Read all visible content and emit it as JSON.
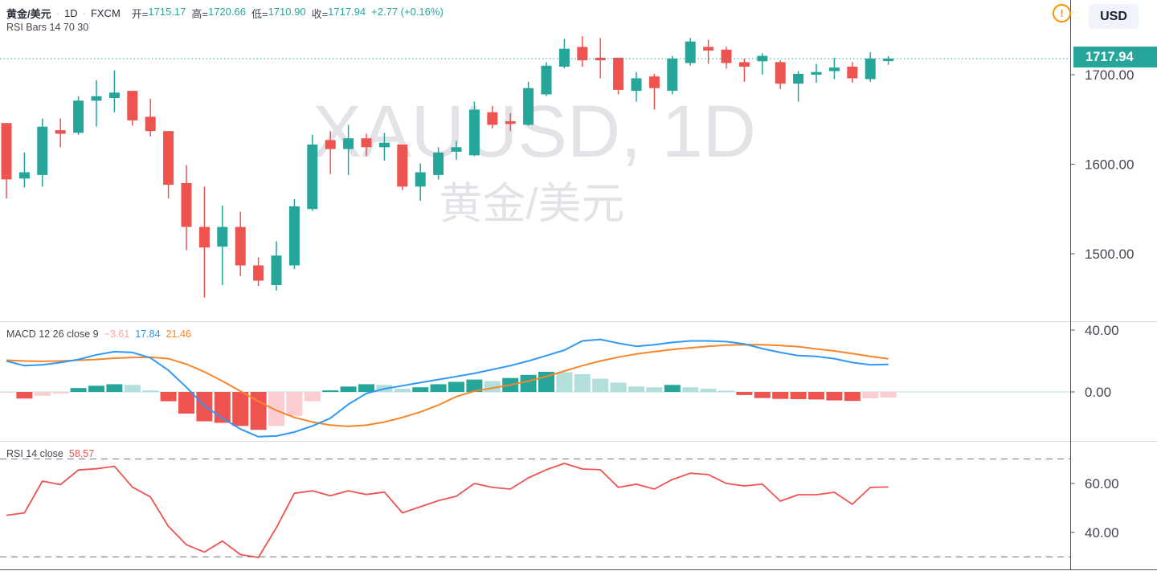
{
  "header": {
    "symbol": "黄金/美元",
    "separator": "·",
    "interval": "1D",
    "exchange": "FXCM",
    "open_label": "开=",
    "open": "1715.17",
    "high_label": "高=",
    "high": "1720.66",
    "low_label": "低=",
    "low": "1710.90",
    "close_label": "收=",
    "close": "1717.94",
    "change": "+2.77 (+0.16%)"
  },
  "indicator_row": "RSI Bars 14 70 30",
  "macd_row": {
    "title": "MACD 12 26 close 9",
    "histogram_value": "−3.61",
    "macd_value": "17.84",
    "signal_value": "21.46"
  },
  "rsi_row": {
    "title": "RSI 14 close",
    "value": "58.57"
  },
  "axis": {
    "currency": "USD",
    "last_price": "1717.94"
  },
  "watermark": {
    "line1": "XAUUSD, 1D",
    "line2": "黄金/美元"
  },
  "warning_icon_glyph": "!",
  "colors": {
    "up": "#26a69a",
    "down": "#ef5350",
    "hist_up_grow": "#26a69a",
    "hist_up_fall": "#b2dfdb",
    "hist_dn_grow": "#fbccd0",
    "hist_dn_fall": "#ef5350",
    "macd_line": "#2f99f5",
    "signal_line": "#f7852c",
    "rsi_line": "#ef5350",
    "band_dash": "#787b86",
    "price_line": "#26a69a",
    "zero_line": "#bfe5e0",
    "separator": "#d6d9e0",
    "axis_line": "#50535e",
    "axis_text": "#424652",
    "watermark": "#697485"
  },
  "chart_data": {
    "type": "candlestick+macd+rsi",
    "symbol": "XAUUSD",
    "interval": "1D",
    "x_count": 50,
    "panes": [
      {
        "id": "price",
        "type": "candlestick",
        "ticks": [
          {
            "v": 1700,
            "label": "1700.00"
          },
          {
            "v": 1600,
            "label": "1600.00"
          },
          {
            "v": 1500,
            "label": "1500.00"
          }
        ],
        "last_price": 1717.94,
        "candles": [
          [
            1646,
            1646,
            1562,
            1583
          ],
          [
            1584,
            1613,
            1574,
            1591
          ],
          [
            1588,
            1651,
            1575,
            1642
          ],
          [
            1638,
            1651,
            1619,
            1634
          ],
          [
            1635,
            1676,
            1633,
            1671
          ],
          [
            1671,
            1694,
            1642,
            1676
          ],
          [
            1674,
            1705,
            1658,
            1680
          ],
          [
            1682,
            1682,
            1643,
            1649
          ],
          [
            1653,
            1673,
            1631,
            1637
          ],
          [
            1637,
            1637,
            1562,
            1577
          ],
          [
            1579,
            1599,
            1504,
            1530
          ],
          [
            1530,
            1575,
            1451,
            1507
          ],
          [
            1508,
            1554,
            1465,
            1530
          ],
          [
            1530,
            1547,
            1475,
            1487
          ],
          [
            1487,
            1496,
            1464,
            1470
          ],
          [
            1465,
            1514,
            1459,
            1498
          ],
          [
            1487,
            1561,
            1483,
            1553
          ],
          [
            1550,
            1633,
            1548,
            1622
          ],
          [
            1627,
            1637,
            1589,
            1617
          ],
          [
            1617,
            1644,
            1588,
            1629
          ],
          [
            1629,
            1634,
            1609,
            1619
          ],
          [
            1619,
            1635,
            1604,
            1624
          ],
          [
            1622,
            1622,
            1571,
            1575
          ],
          [
            1575,
            1601,
            1559,
            1591
          ],
          [
            1588,
            1619,
            1583,
            1613
          ],
          [
            1614,
            1626,
            1605,
            1619
          ],
          [
            1610,
            1670,
            1609,
            1661
          ],
          [
            1658,
            1665,
            1640,
            1644
          ],
          [
            1648,
            1657,
            1637,
            1645
          ],
          [
            1644,
            1692,
            1643,
            1685
          ],
          [
            1678,
            1714,
            1676,
            1710
          ],
          [
            1709,
            1740,
            1707,
            1729
          ],
          [
            1731,
            1743,
            1709,
            1716
          ],
          [
            1719,
            1741,
            1696,
            1716
          ],
          [
            1719,
            1719,
            1678,
            1683
          ],
          [
            1682,
            1703,
            1670,
            1696
          ],
          [
            1698,
            1701,
            1661,
            1685
          ],
          [
            1682,
            1721,
            1678,
            1718
          ],
          [
            1713,
            1741,
            1710,
            1737
          ],
          [
            1731,
            1739,
            1712,
            1727
          ],
          [
            1728,
            1731,
            1707,
            1713
          ],
          [
            1714,
            1718,
            1692,
            1709
          ],
          [
            1715,
            1724,
            1700,
            1721
          ],
          [
            1714,
            1716,
            1684,
            1690
          ],
          [
            1690,
            1704,
            1670,
            1701
          ],
          [
            1700,
            1712,
            1691,
            1703
          ],
          [
            1704,
            1719,
            1695,
            1708
          ],
          [
            1709,
            1714,
            1691,
            1696
          ],
          [
            1695,
            1725,
            1692,
            1718
          ],
          [
            1715.17,
            1720.66,
            1710.9,
            1717.94
          ]
        ]
      },
      {
        "id": "macd",
        "type": "macd",
        "ticks": [
          {
            "v": 40,
            "label": "40.00"
          },
          {
            "v": 0,
            "label": "0.00"
          }
        ],
        "histogram": [
          -0.5,
          -4.3,
          -2.5,
          -1,
          2.5,
          4,
          5,
          4.5,
          1,
          -6,
          -14,
          -19,
          -20,
          -22,
          -24.5,
          -22,
          -15.5,
          -6,
          1,
          3.5,
          5,
          4.5,
          2,
          3,
          5,
          6.5,
          8,
          7,
          9,
          11,
          13,
          12.8,
          11.5,
          8.5,
          6,
          3.5,
          3,
          4.5,
          3,
          2,
          0.8,
          -2,
          -4,
          -4.5,
          -4.7,
          -4.9,
          -5.5,
          -5.8,
          -4.2,
          -3.61
        ],
        "macd": [
          20,
          17,
          17.5,
          19,
          21,
          24,
          26,
          25.5,
          22,
          14,
          3,
          -9,
          -17,
          -24,
          -29,
          -28.5,
          -26,
          -22,
          -17,
          -8,
          -1,
          2,
          4,
          6,
          8,
          10,
          12,
          14.5,
          17,
          20,
          23.5,
          27,
          33,
          34,
          31.5,
          29.5,
          30.5,
          32,
          33,
          33,
          32.5,
          31,
          28,
          25.5,
          23.5,
          23,
          21.5,
          19,
          17.5,
          17.84
        ],
        "signal": [
          20.5,
          20,
          19.8,
          20,
          20.5,
          21,
          21.8,
          22.3,
          22.5,
          21.5,
          18,
          13,
          7,
          0.5,
          -6,
          -12,
          -16.5,
          -19.5,
          -21.5,
          -22.3,
          -21.5,
          -19.5,
          -16.5,
          -13,
          -8.5,
          -3,
          0.5,
          2.5,
          4.5,
          7,
          10,
          13.5,
          17,
          20,
          22.5,
          24.5,
          26,
          27.5,
          28.5,
          29.5,
          30.3,
          30.6,
          30.5,
          30,
          29.3,
          27.8,
          26.5,
          24.8,
          23,
          21.46
        ]
      },
      {
        "id": "rsi",
        "type": "line",
        "ticks": [
          {
            "v": 60,
            "label": "60.00"
          },
          {
            "v": 40,
            "label": "40.00"
          }
        ],
        "bands": [
          70,
          30
        ],
        "values": [
          47,
          48,
          61,
          59.5,
          65.5,
          66,
          67,
          58.5,
          54.5,
          42.5,
          35,
          32,
          36.5,
          31,
          29.8,
          42,
          56,
          57,
          55,
          57,
          55.5,
          56.5,
          48,
          50.5,
          53,
          54.8,
          60,
          58.4,
          57.7,
          62.3,
          65.6,
          68.2,
          65.9,
          65.6,
          58.4,
          59.7,
          57.7,
          61.6,
          64.2,
          63.6,
          60,
          59,
          59.7,
          52.8,
          55.4,
          55.4,
          56.4,
          51.5,
          58.4,
          58.57
        ]
      }
    ]
  }
}
